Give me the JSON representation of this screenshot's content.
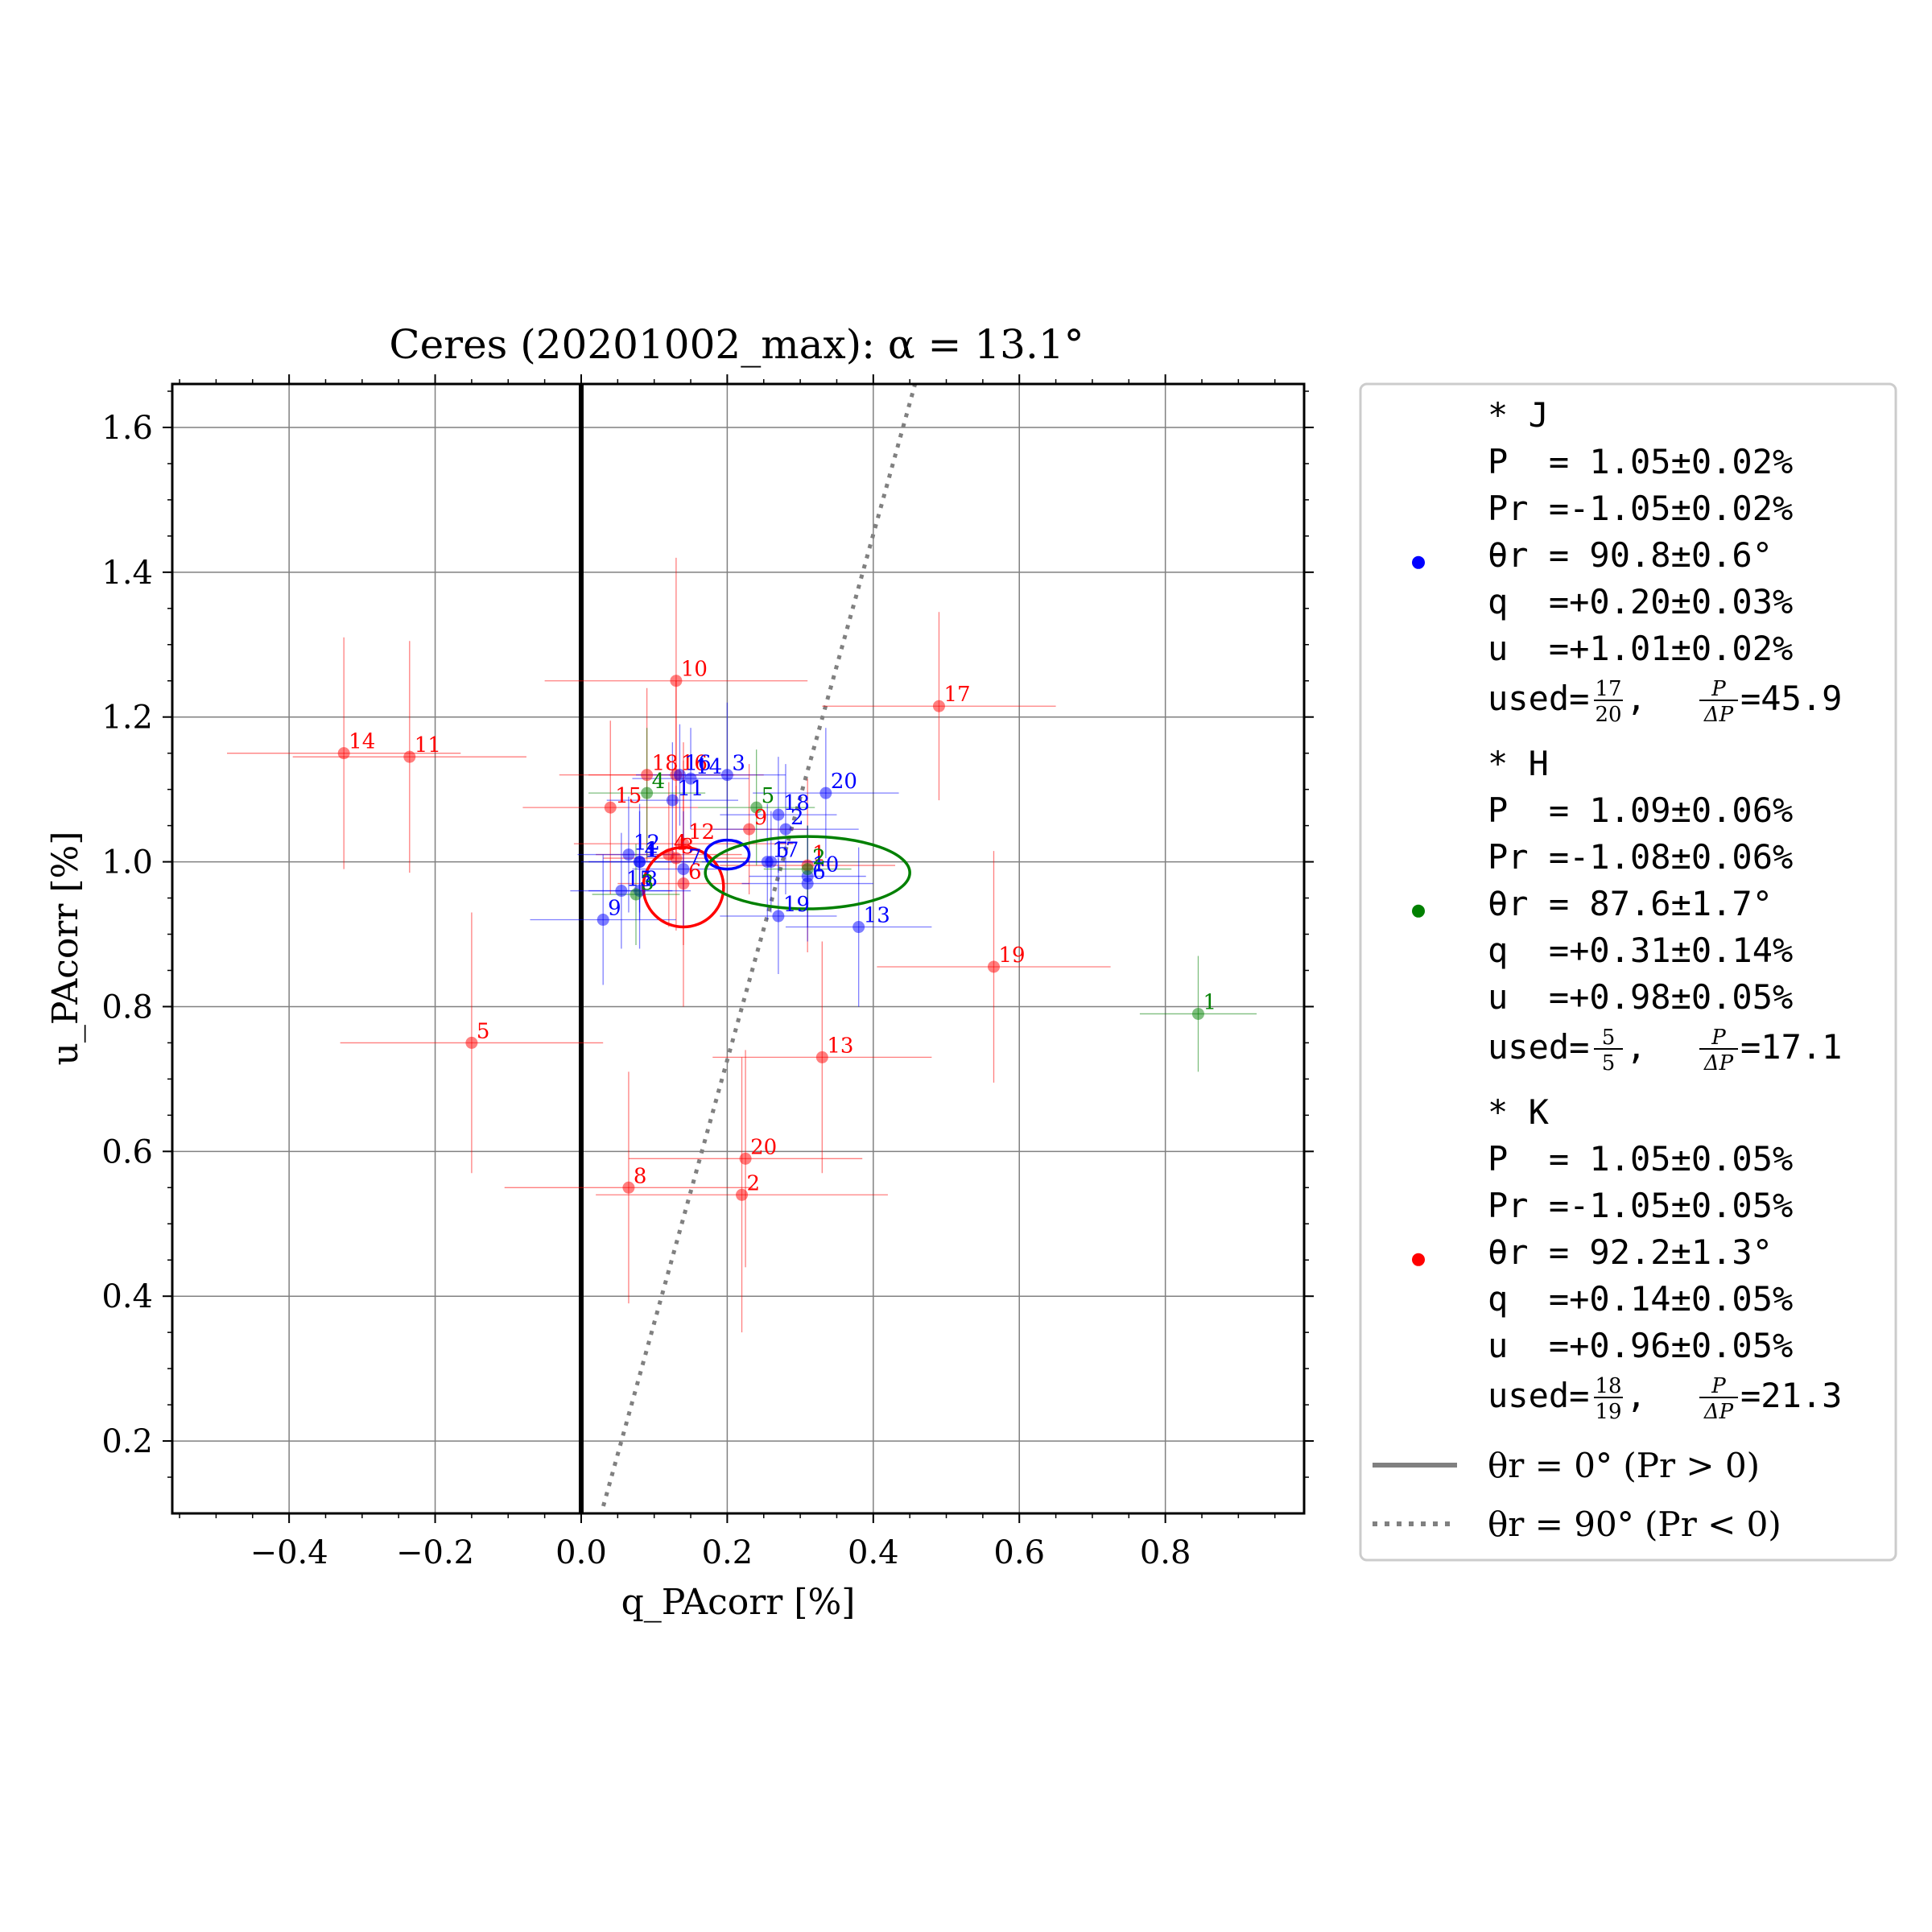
{
  "chart_data": {
    "type": "scatter",
    "title": "Ceres (20201002_max): α = 13.1°",
    "xlabel": "q_PAcorr [%]",
    "ylabel": "u_PAcorr [%]",
    "xlim": [
      -0.56,
      0.99
    ],
    "ylim": [
      0.1,
      1.66
    ],
    "xticks": [
      -0.4,
      -0.2,
      0.0,
      0.2,
      0.4,
      0.6,
      0.8
    ],
    "xtick_labels": [
      "−0.4",
      "−0.2",
      "0.0",
      "0.2",
      "0.4",
      "0.6",
      "0.8"
    ],
    "yticks": [
      0.2,
      0.4,
      0.6,
      0.8,
      1.0,
      1.2,
      1.4,
      1.6
    ],
    "ytick_labels": [
      "0.2",
      "0.4",
      "0.6",
      "0.8",
      "1.0",
      "1.2",
      "1.4",
      "1.6"
    ],
    "grid": true,
    "reference_lines": [
      {
        "kind": "vertical",
        "x": 0.0,
        "label": "θr = 0° (Pr > 0)"
      },
      {
        "kind": "line_through_origin",
        "angle_deg": 74.6,
        "label": "θr = 90° (Pr < 0)"
      }
    ],
    "legend_position": "outside-right",
    "series": [
      {
        "name": "J",
        "color": "#0000ff",
        "summary": {
          "header": "* J",
          "P": "P  = 1.05±0.02%",
          "Pr": "Pr =-1.05±0.02%",
          "theta": "θr = 90.8±0.6°",
          "q": "q  =+0.20±0.03%",
          "u": "u  =+1.01±0.02%",
          "used_prefix": "used=",
          "used_num": "17",
          "used_den": "20",
          "snr_value": "=45.9"
        },
        "mean": {
          "q": 0.2,
          "u": 1.01,
          "eq": 0.03,
          "eu": 0.02
        },
        "points": [
          {
            "id": "1",
            "q": 0.08,
            "u": 1.0,
            "eq": 0.08,
            "eu": 0.07
          },
          {
            "id": "2",
            "q": 0.28,
            "u": 1.045,
            "eq": 0.1,
            "eu": 0.09
          },
          {
            "id": "3",
            "q": 0.2,
            "u": 1.12,
            "eq": 0.08,
            "eu": 0.1
          },
          {
            "id": "4",
            "q": 0.08,
            "u": 1.0,
            "eq": 0.07,
            "eu": 0.08
          },
          {
            "id": "5",
            "q": 0.26,
            "u": 1.0,
            "eq": 0.08,
            "eu": 0.07
          },
          {
            "id": "6",
            "q": 0.31,
            "u": 0.97,
            "eq": 0.09,
            "eu": 0.08
          },
          {
            "id": "7",
            "q": 0.14,
            "u": 0.99,
            "eq": 0.07,
            "eu": 0.08
          },
          {
            "id": "8",
            "q": 0.08,
            "u": 0.96,
            "eq": 0.07,
            "eu": 0.08
          },
          {
            "id": "9",
            "q": 0.03,
            "u": 0.92,
            "eq": 0.1,
            "eu": 0.09
          },
          {
            "id": "10",
            "q": 0.31,
            "u": 0.98,
            "eq": 0.08,
            "eu": 0.07
          },
          {
            "id": "11",
            "q": 0.125,
            "u": 1.085,
            "eq": 0.09,
            "eu": 0.08
          },
          {
            "id": "12",
            "q": 0.065,
            "u": 1.01,
            "eq": 0.07,
            "eu": 0.08
          },
          {
            "id": "13",
            "q": 0.38,
            "u": 0.91,
            "eq": 0.1,
            "eu": 0.11
          },
          {
            "id": "14",
            "q": 0.15,
            "u": 1.115,
            "eq": 0.08,
            "eu": 0.07
          },
          {
            "id": "15",
            "q": 0.055,
            "u": 0.96,
            "eq": 0.07,
            "eu": 0.08
          },
          {
            "id": "16",
            "q": 0.135,
            "u": 1.12,
            "eq": 0.06,
            "eu": 0.07
          },
          {
            "id": "17",
            "q": 0.255,
            "u": 1.0,
            "eq": 0.09,
            "eu": 0.08
          },
          {
            "id": "18",
            "q": 0.27,
            "u": 1.065,
            "eq": 0.08,
            "eu": 0.08
          },
          {
            "id": "19",
            "q": 0.27,
            "u": 0.925,
            "eq": 0.08,
            "eu": 0.08
          },
          {
            "id": "20",
            "q": 0.335,
            "u": 1.095,
            "eq": 0.1,
            "eu": 0.09
          }
        ]
      },
      {
        "name": "H",
        "color": "#008000",
        "summary": {
          "header": "* H",
          "P": "P  = 1.09±0.06%",
          "Pr": "Pr =-1.08±0.06%",
          "theta": "θr = 87.6±1.7°",
          "q": "q  =+0.31±0.14%",
          "u": "u  =+0.98±0.05%",
          "used_prefix": "used=",
          "used_num": "5",
          "used_den": "5",
          "snr_value": "=17.1"
        },
        "mean": {
          "q": 0.31,
          "u": 0.985,
          "eq": 0.14,
          "eu": 0.05
        },
        "points": [
          {
            "id": "1",
            "q": 0.845,
            "u": 0.79,
            "eq": 0.08,
            "eu": 0.08
          },
          {
            "id": "2",
            "q": 0.31,
            "u": 0.99,
            "eq": 0.06,
            "eu": 0.06
          },
          {
            "id": "3",
            "q": 0.075,
            "u": 0.955,
            "eq": 0.06,
            "eu": 0.07
          },
          {
            "id": "4",
            "q": 0.09,
            "u": 1.095,
            "eq": 0.08,
            "eu": 0.09
          },
          {
            "id": "5",
            "q": 0.24,
            "u": 1.075,
            "eq": 0.08,
            "eu": 0.08
          }
        ]
      },
      {
        "name": "K",
        "color": "#ff0000",
        "summary": {
          "header": "* K",
          "P": "P  = 1.05±0.05%",
          "Pr": "Pr =-1.05±0.05%",
          "theta": "θr = 92.2±1.3°",
          "q": "q  =+0.14±0.05%",
          "u": "u  =+0.96±0.05%",
          "used_prefix": "used=",
          "used_num": "18",
          "used_den": "19",
          "snr_value": "=21.3"
        },
        "mean": {
          "q": 0.14,
          "u": 0.965,
          "eq": 0.055,
          "eu": 0.055
        },
        "points": [
          {
            "id": "2",
            "q": 0.22,
            "u": 0.54,
            "eq": 0.2,
            "eu": 0.19
          },
          {
            "id": "5",
            "q": -0.15,
            "u": 0.75,
            "eq": 0.18,
            "eu": 0.18
          },
          {
            "id": "6",
            "q": 0.14,
            "u": 0.97,
            "eq": 0.09,
            "eu": 0.17
          },
          {
            "id": "8",
            "q": 0.065,
            "u": 0.55,
            "eq": 0.17,
            "eu": 0.16
          },
          {
            "id": "9",
            "q": 0.23,
            "u": 1.045,
            "eq": 0.08,
            "eu": 0.09
          },
          {
            "id": "10",
            "q": 0.13,
            "u": 1.25,
            "eq": 0.18,
            "eu": 0.17
          },
          {
            "id": "11",
            "q": -0.235,
            "u": 1.145,
            "eq": 0.16,
            "eu": 0.16
          },
          {
            "id": "12",
            "q": 0.14,
            "u": 1.025,
            "eq": 0.15,
            "eu": 0.14
          },
          {
            "id": "13",
            "q": 0.33,
            "u": 0.73,
            "eq": 0.15,
            "eu": 0.16
          },
          {
            "id": "14",
            "q": -0.325,
            "u": 1.15,
            "eq": 0.16,
            "eu": 0.16
          },
          {
            "id": "15",
            "q": 0.04,
            "u": 1.075,
            "eq": 0.12,
            "eu": 0.12
          },
          {
            "id": "16",
            "q": 0.13,
            "u": 1.12,
            "eq": 0.12,
            "eu": 0.13
          },
          {
            "id": "17",
            "q": 0.49,
            "u": 1.215,
            "eq": 0.16,
            "eu": 0.13
          },
          {
            "id": "18",
            "q": 0.09,
            "u": 1.12,
            "eq": 0.12,
            "eu": 0.12
          },
          {
            "id": "19",
            "q": 0.565,
            "u": 0.855,
            "eq": 0.16,
            "eu": 0.16
          },
          {
            "id": "20",
            "q": 0.225,
            "u": 0.59,
            "eq": 0.16,
            "eu": 0.15
          },
          {
            "id": "1",
            "q": 0.31,
            "u": 0.995,
            "eq": 0.12,
            "eu": 0.12
          },
          {
            "id": "3",
            "q": 0.13,
            "u": 1.005,
            "eq": 0.1,
            "eu": 0.1
          },
          {
            "id": "4",
            "q": 0.12,
            "u": 1.01,
            "eq": 0.1,
            "eu": 0.1
          }
        ]
      }
    ]
  },
  "legend": {
    "line_solid_label": "θr = 0° (Pr > 0)",
    "line_dotted_label": "θr = 90° (Pr < 0)",
    "snr_num": "P",
    "snr_den": "ΔP",
    "sep": ","
  }
}
